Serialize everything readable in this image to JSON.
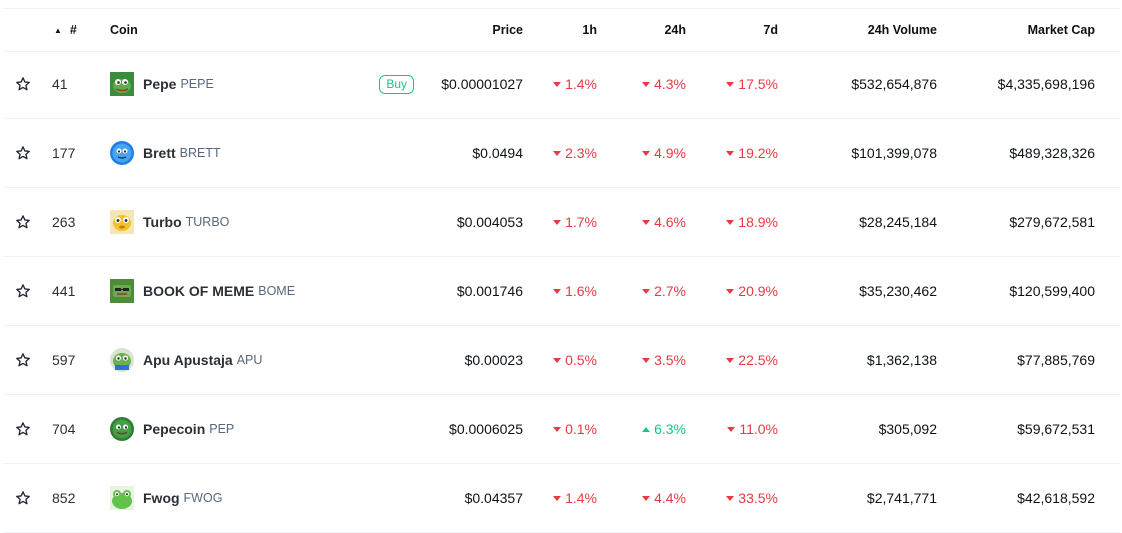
{
  "header": {
    "sort_indicator": "▲",
    "rank": "#",
    "coin": "Coin",
    "price": "Price",
    "h1": "1h",
    "h24": "24h",
    "d7": "7d",
    "volume": "24h Volume",
    "market_cap": "Market Cap"
  },
  "buy_label": "Buy",
  "colors": {
    "negative": "#ea3943",
    "positive": "#16c784"
  },
  "coins": [
    {
      "rank": "41",
      "name": "Pepe",
      "symbol": "PEPE",
      "price": "$0.00001027",
      "h1": "1.4%",
      "h1_dir": "down",
      "h24": "4.3%",
      "h24_dir": "down",
      "d7": "17.5%",
      "d7_dir": "down",
      "volume": "$532,654,876",
      "market_cap": "$4,335,698,196",
      "buy": true,
      "icon": "pepe-frog-icon"
    },
    {
      "rank": "177",
      "name": "Brett",
      "symbol": "BRETT",
      "price": "$0.0494",
      "h1": "2.3%",
      "h1_dir": "down",
      "h24": "4.9%",
      "h24_dir": "down",
      "d7": "19.2%",
      "d7_dir": "down",
      "volume": "$101,399,078",
      "market_cap": "$489,328,326",
      "buy": false,
      "icon": "brett-blue-icon"
    },
    {
      "rank": "263",
      "name": "Turbo",
      "symbol": "TURBO",
      "price": "$0.004053",
      "h1": "1.7%",
      "h1_dir": "down",
      "h24": "4.6%",
      "h24_dir": "down",
      "d7": "18.9%",
      "d7_dir": "down",
      "volume": "$28,245,184",
      "market_cap": "$279,672,581",
      "buy": false,
      "icon": "turbo-yellow-icon"
    },
    {
      "rank": "441",
      "name": "BOOK OF MEME",
      "symbol": "BOME",
      "price": "$0.001746",
      "h1": "1.6%",
      "h1_dir": "down",
      "h24": "2.7%",
      "h24_dir": "down",
      "d7": "20.9%",
      "d7_dir": "down",
      "volume": "$35,230,462",
      "market_cap": "$120,599,400",
      "buy": false,
      "icon": "bome-book-icon"
    },
    {
      "rank": "597",
      "name": "Apu Apustaja",
      "symbol": "APU",
      "price": "$0.00023",
      "h1": "0.5%",
      "h1_dir": "down",
      "h24": "3.5%",
      "h24_dir": "down",
      "d7": "22.5%",
      "d7_dir": "down",
      "volume": "$1,362,138",
      "market_cap": "$77,885,769",
      "buy": false,
      "icon": "apu-frog-icon"
    },
    {
      "rank": "704",
      "name": "Pepecoin",
      "symbol": "PEP",
      "price": "$0.0006025",
      "h1": "0.1%",
      "h1_dir": "down",
      "h24": "6.3%",
      "h24_dir": "up",
      "d7": "11.0%",
      "d7_dir": "down",
      "volume": "$305,092",
      "market_cap": "$59,672,531",
      "buy": false,
      "icon": "pepecoin-icon"
    },
    {
      "rank": "852",
      "name": "Fwog",
      "symbol": "FWOG",
      "price": "$0.04357",
      "h1": "1.4%",
      "h1_dir": "down",
      "h24": "4.4%",
      "h24_dir": "down",
      "d7": "33.5%",
      "d7_dir": "down",
      "volume": "$2,741,771",
      "market_cap": "$42,618,592",
      "buy": false,
      "icon": "fwog-frog-icon"
    }
  ]
}
